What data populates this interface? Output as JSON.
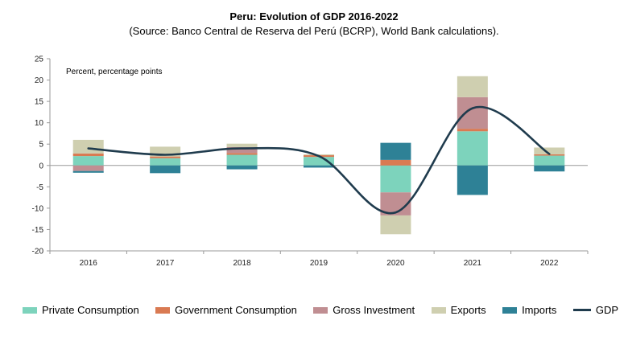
{
  "chart_data": {
    "type": "bar",
    "stacked": true,
    "title": "Peru: Evolution of GDP 2016-2022",
    "subtitle": "(Source: Banco Central de Reserva del Perú (BCRP), World Bank calculations).",
    "annotation": "Percent, percentage points",
    "categories": [
      "2016",
      "2017",
      "2018",
      "2019",
      "2020",
      "2021",
      "2022"
    ],
    "ylim": [
      -20,
      25
    ],
    "yticks": [
      25,
      20,
      15,
      10,
      5,
      0,
      -5,
      -10,
      -15,
      -20
    ],
    "series": [
      {
        "name": "Private Consumption",
        "color": "#7dd3bc",
        "values": [
          2.2,
          1.7,
          2.5,
          2.0,
          -6.3,
          8.0,
          2.3
        ]
      },
      {
        "name": "Government Consumption",
        "color": "#d97a52",
        "values": [
          0.6,
          0.4,
          0.4,
          0.4,
          1.3,
          0.6,
          0.3
        ]
      },
      {
        "name": "Gross Investment",
        "color": "#c08e92",
        "values": [
          -1.3,
          0.0,
          1.4,
          0.0,
          -5.4,
          7.4,
          0.0
        ]
      },
      {
        "name": "Exports",
        "color": "#cfcfb0",
        "values": [
          3.2,
          2.3,
          0.8,
          0.2,
          -4.4,
          4.9,
          1.6
        ]
      },
      {
        "name": "Imports",
        "color": "#2e8196",
        "values": [
          -0.4,
          -1.8,
          -0.9,
          -0.5,
          4.0,
          -6.9,
          -1.4
        ]
      }
    ],
    "line": {
      "name": "GDP",
      "color": "#1f3b4d",
      "values": [
        4.0,
        2.5,
        4.0,
        2.2,
        -11.0,
        13.4,
        2.7
      ]
    },
    "grid": false,
    "legend_position": "bottom"
  }
}
